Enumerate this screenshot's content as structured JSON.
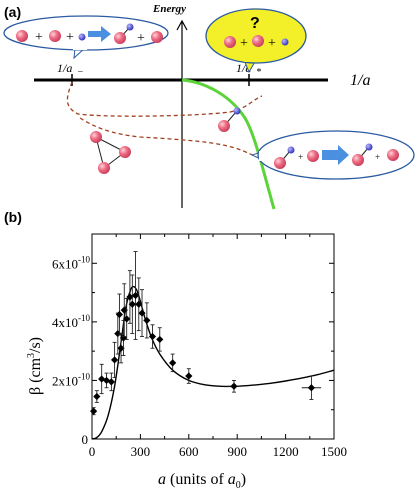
{
  "panel_a": {
    "label": "(a)",
    "energy_label": "Energy",
    "axis_label": "1/a",
    "tick_minus": "1/a",
    "tick_minus_sub": "−",
    "tick_star": "1/a",
    "tick_star_sub": "*",
    "plus": "+",
    "question": "?",
    "colors": {
      "atom": "#e8607a",
      "probe": "#3f3fd0",
      "arrow": "#4a8fe0",
      "dimer_line": "#5cd33a",
      "trimer_curve": "#a04020",
      "bubble_fill": "#ffffff",
      "bubble_stroke": "#2a5aa0",
      "highlight": "#f3f029"
    }
  },
  "panel_b": {
    "label": "(b)",
    "chart_data": {
      "type": "scatter",
      "xlabel": "a (units of a0)",
      "xlabel_parts": {
        "var": "a",
        "mid": " (units of ",
        "sym": "a",
        "sub": "0",
        "end": ")"
      },
      "ylabel_parts": {
        "sym": "β",
        "open": " (cm",
        "sup": "3",
        "close": "/s)"
      },
      "xlim": [
        0,
        1500
      ],
      "ylim": [
        0,
        7e-10
      ],
      "xticks": [
        "0",
        "300",
        "600",
        "900",
        "1200",
        "1500"
      ],
      "xtick_values": [
        0,
        300,
        600,
        900,
        1200,
        1500
      ],
      "yticks": [
        {
          "value": 0,
          "base": "0",
          "exp": ""
        },
        {
          "value": 2e-10,
          "base": "2x10",
          "exp": "-10"
        },
        {
          "value": 4e-10,
          "base": "4x10",
          "exp": "-10"
        },
        {
          "value": 6e-10,
          "base": "6x10",
          "exp": "-10"
        }
      ],
      "points": [
        {
          "x": 10,
          "y": 9.5e-11,
          "yerr": 1.2e-11
        },
        {
          "x": 30,
          "y": 1.45e-10,
          "yerr": 2e-11
        },
        {
          "x": 60,
          "y": 2.05e-10,
          "yerr": 5e-11
        },
        {
          "x": 90,
          "y": 2e-10,
          "yerr": 2.5e-11
        },
        {
          "x": 120,
          "y": 1.95e-10,
          "yerr": 3e-11
        },
        {
          "x": 140,
          "y": 2.7e-10,
          "yerr": 6e-11
        },
        {
          "x": 160,
          "y": 3.6e-10,
          "yerr": 7e-11
        },
        {
          "x": 170,
          "y": 4.25e-10,
          "yerr": 7e-11
        },
        {
          "x": 180,
          "y": 3.1e-10,
          "yerr": 5e-11
        },
        {
          "x": 195,
          "y": 3.45e-10,
          "yerr": 6e-11
        },
        {
          "x": 200,
          "y": 4.4e-10,
          "yerr": 9e-11
        },
        {
          "x": 215,
          "y": 4.1e-10,
          "yerr": 7e-11
        },
        {
          "x": 235,
          "y": 4.85e-10,
          "yerr": 9e-11
        },
        {
          "x": 250,
          "y": 4.6e-10,
          "yerr": 1e-10
        },
        {
          "x": 270,
          "y": 4.9e-10,
          "yerr": 1.5e-10
        },
        {
          "x": 290,
          "y": 4.6e-10,
          "yerr": 9e-11
        },
        {
          "x": 310,
          "y": 4.3e-10,
          "yerr": 8e-11
        },
        {
          "x": 340,
          "y": 4.05e-10,
          "yerr": 6e-11
        },
        {
          "x": 375,
          "y": 3.5e-10,
          "yerr": 4e-11
        },
        {
          "x": 420,
          "y": 3.4e-10,
          "yerr": 4e-11
        },
        {
          "x": 500,
          "y": 2.6e-10,
          "yerr": 3e-11
        },
        {
          "x": 600,
          "y": 2.15e-10,
          "yerr": 2.5e-11
        },
        {
          "x": 880,
          "y": 1.8e-10,
          "yerr": 2e-11,
          "xerr": 40
        },
        {
          "x": 1360,
          "y": 1.75e-10,
          "yerr": 4e-11,
          "xerr": 60
        }
      ],
      "fit_curve": {
        "x": [
          0,
          30,
          60,
          100,
          140,
          180,
          210,
          240,
          260,
          280,
          300,
          330,
          370,
          420,
          500,
          600,
          700,
          800,
          900,
          1000,
          1100,
          1200,
          1300,
          1400,
          1500
        ],
        "y": [
          0,
          5e-12,
          2.5e-11,
          8e-11,
          1.8e-10,
          3.3e-10,
          4.5e-10,
          5.1e-10,
          5.2e-10,
          5.05e-10,
          4.7e-10,
          4.1e-10,
          3.45e-10,
          2.9e-10,
          2.35e-10,
          2e-10,
          1.85e-10,
          1.8e-10,
          1.8e-10,
          1.84e-10,
          1.9e-10,
          1.98e-10,
          2.08e-10,
          2.2e-10,
          2.35e-10
        ]
      },
      "grid": false
    }
  }
}
